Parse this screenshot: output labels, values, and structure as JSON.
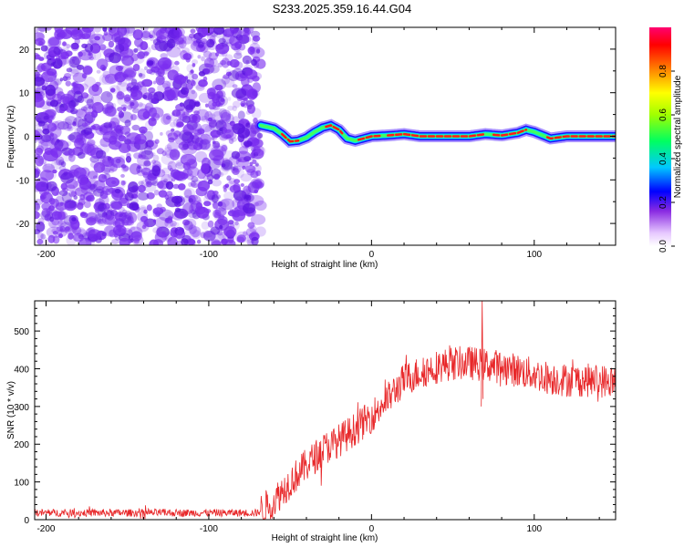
{
  "title": "S233.2025.359.16.44.G04",
  "colors": {
    "snr_line": "#e8282a",
    "noise_dots": "#7b2ff0",
    "frame": "#000000"
  },
  "chart_data": [
    {
      "type": "heatmap",
      "xlabel": "Height of straight line (km)",
      "ylabel": "Frequency (Hz)",
      "xlim": [
        -207,
        150
      ],
      "ylim": [
        -25,
        25
      ],
      "xticks": [
        -200,
        -100,
        0,
        100
      ],
      "yticks": [
        -20,
        -10,
        0,
        10,
        20
      ],
      "noise_region_x": [
        -207,
        -68
      ],
      "ridge": {
        "x": [
          -68,
          -60,
          -55,
          -50,
          -45,
          -40,
          -35,
          -30,
          -25,
          -20,
          -15,
          -10,
          -5,
          0,
          10,
          20,
          30,
          40,
          50,
          60,
          70,
          80,
          90,
          95,
          100,
          110,
          120,
          130,
          140,
          150
        ],
        "freq": [
          2.5,
          1.8,
          0.5,
          -1.2,
          -1.0,
          -0.3,
          1.0,
          2.0,
          2.5,
          1.5,
          -0.5,
          -1.0,
          -0.5,
          0,
          0.2,
          0.5,
          0,
          0,
          0,
          0,
          0.5,
          0.2,
          0.8,
          1.5,
          1.0,
          -0.5,
          0,
          0,
          0,
          0
        ]
      },
      "colorbar": {
        "label": "Normalized spectral amplitude",
        "range": [
          0,
          1
        ],
        "ticks": [
          "0.0",
          "0.2",
          "0.4",
          "0.6",
          "0.8"
        ],
        "tick_values": [
          0,
          0.2,
          0.4,
          0.6,
          0.8
        ]
      }
    },
    {
      "type": "line",
      "xlabel": "Height of straight line (km)",
      "ylabel": "SNR (10 * v/v)",
      "xlim": [
        -207,
        150
      ],
      "ylim": [
        0,
        580
      ],
      "xticks": [
        -200,
        -100,
        0,
        100
      ],
      "yticks": [
        0,
        100,
        200,
        300,
        400,
        500
      ],
      "trend": {
        "x": [
          -207,
          -150,
          -70,
          -60,
          -50,
          -40,
          -30,
          -20,
          -10,
          0,
          10,
          20,
          30,
          40,
          50,
          60,
          70,
          80,
          90,
          100,
          110,
          120,
          130,
          140,
          150
        ],
        "snr": [
          18,
          18,
          18,
          50,
          100,
          145,
          185,
          210,
          240,
          275,
          320,
          370,
          390,
          405,
          415,
          415,
          410,
          405,
          395,
          385,
          375,
          370,
          370,
          368,
          365
        ]
      },
      "noise_amplitude": 45,
      "peak": {
        "x": 68,
        "snr": 580
      }
    }
  ]
}
